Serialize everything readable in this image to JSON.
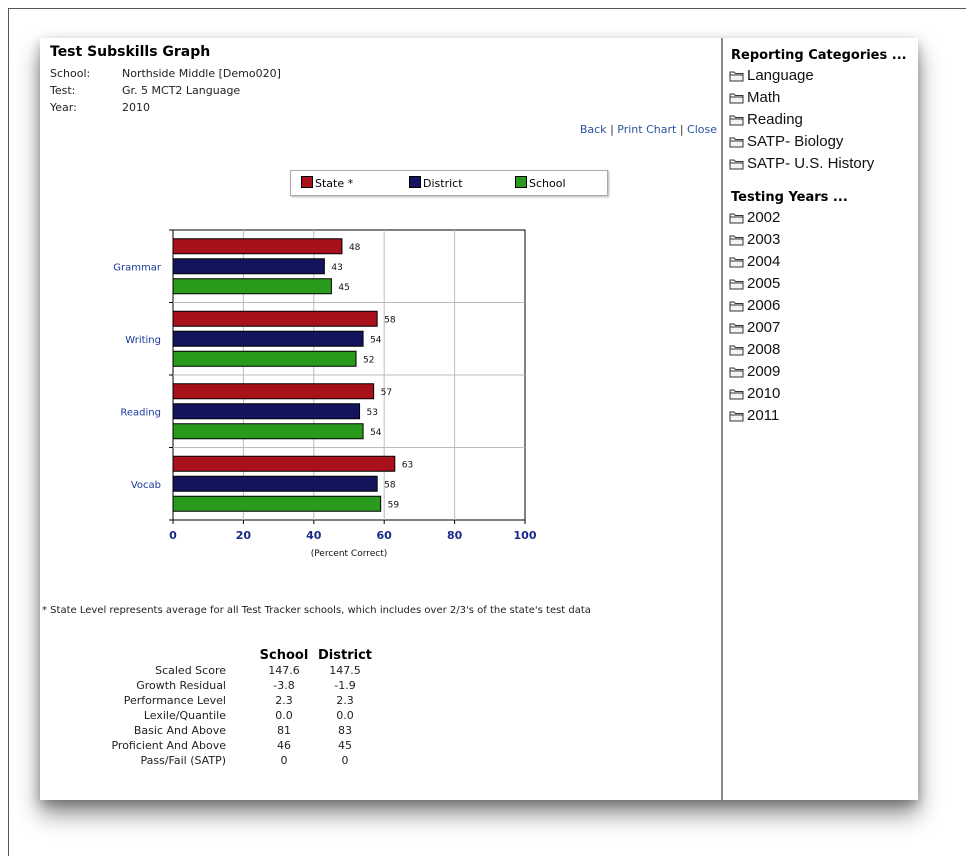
{
  "header": {
    "title": "Test Subskills Graph",
    "school_label": "School:",
    "school_value": "Northside Middle [Demo020]",
    "test_label": "Test:",
    "test_value": "Gr. 5 MCT2 Language",
    "year_label": "Year:",
    "year_value": "2010"
  },
  "links": {
    "back": "Back",
    "print": "Print Chart",
    "close": "Close",
    "separator": "|"
  },
  "chart_data": {
    "type": "bar",
    "orientation": "horizontal",
    "categories": [
      "Grammar",
      "Writing",
      "Reading",
      "Vocab"
    ],
    "series": [
      {
        "name": "State *",
        "color": "#a8101a",
        "values": [
          48,
          58,
          57,
          63
        ]
      },
      {
        "name": "District",
        "color": "#14145e",
        "values": [
          43,
          54,
          53,
          58
        ]
      },
      {
        "name": "School",
        "color": "#2a9a1c",
        "values": [
          45,
          52,
          54,
          59
        ]
      }
    ],
    "xlabel": "(Percent Correct)",
    "xlim": [
      0,
      100
    ],
    "xticks": [
      0,
      20,
      40,
      60,
      80,
      100
    ],
    "grid": true,
    "legend": "top"
  },
  "footnote": "* State Level represents average for all Test Tracker schools, which includes over 2/3's of the state's test data",
  "scores": {
    "headers": [
      "School",
      "District"
    ],
    "rows": [
      {
        "label": "Scaled Score",
        "school": "147.6",
        "district": "147.5"
      },
      {
        "label": "Growth Residual",
        "school": "-3.8",
        "district": "-1.9"
      },
      {
        "label": "Performance Level",
        "school": "2.3",
        "district": "2.3"
      },
      {
        "label": "Lexile/Quantile",
        "school": "0.0",
        "district": "0.0"
      },
      {
        "label": "Basic And Above",
        "school": "81",
        "district": "83"
      },
      {
        "label": "Proficient And Above",
        "school": "46",
        "district": "45"
      },
      {
        "label": "Pass/Fail (SATP)",
        "school": "0",
        "district": "0"
      }
    ]
  },
  "sidebar": {
    "categories_title": "Reporting Categories ...",
    "categories": [
      "Language",
      "Math",
      "Reading",
      "SATP- Biology",
      "SATP- U.S. History"
    ],
    "years_title": "Testing Years ...",
    "years": [
      "2002",
      "2003",
      "2004",
      "2005",
      "2006",
      "2007",
      "2008",
      "2009",
      "2010",
      "2011"
    ],
    "icon": "folder-icon"
  }
}
